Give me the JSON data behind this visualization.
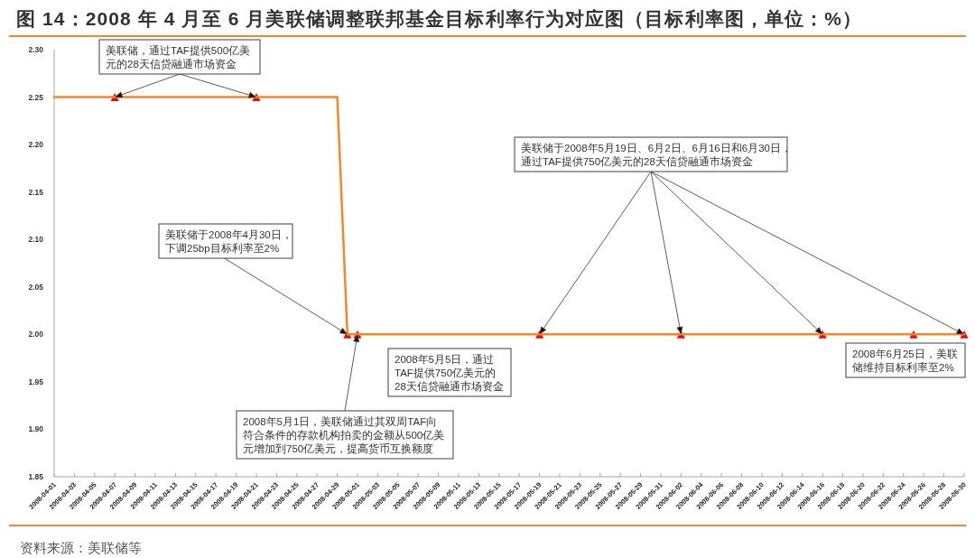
{
  "chart_data": {
    "type": "line",
    "title": "图 14：2008 年 4 月至 6 月美联储调整联邦基金目标利率行为对应图（目标利率图，单位：%）",
    "series": [
      {
        "color": "#f7862a",
        "marker": "none",
        "x": [
          "2008-04-01",
          "2008-04-29",
          "2008-04-30",
          "2008-06-30"
        ],
        "values": [
          2.25,
          2.25,
          2.0,
          2.0
        ]
      },
      {
        "type": "scatter",
        "color": "#ff0000",
        "marker": "triangle",
        "x": [
          "2008-04-07",
          "2008-04-21",
          "2008-04-30",
          "2008-05-01",
          "2008-05-19",
          "2008-06-02",
          "2008-06-16",
          "2008-06-25",
          "2008-06-30"
        ],
        "values": [
          2.25,
          2.25,
          2.0,
          2.0,
          2.0,
          2.0,
          2.0,
          2.0,
          2.0
        ]
      }
    ],
    "xlim": [
      "2008-04-01",
      "2008-06-30"
    ],
    "xticks": [
      "2008-04-01",
      "2008-04-03",
      "2008-04-05",
      "2008-04-07",
      "2008-04-09",
      "2008-04-11",
      "2008-04-13",
      "2008-04-15",
      "2008-04-17",
      "2008-04-19",
      "2008-04-21",
      "2008-04-23",
      "2008-04-25",
      "2008-04-27",
      "2008-04-29",
      "2008-05-01",
      "2008-05-03",
      "2008-05-05",
      "2008-05-07",
      "2008-05-09",
      "2008-05-11",
      "2008-05-13",
      "2008-05-15",
      "2008-05-17",
      "2008-05-19",
      "2008-05-21",
      "2008-05-23",
      "2008-05-25",
      "2008-05-27",
      "2008-05-29",
      "2008-05-31",
      "2008-06-02",
      "2008-06-04",
      "2008-06-06",
      "2008-06-08",
      "2008-06-10",
      "2008-06-12",
      "2008-06-14",
      "2008-06-16",
      "2008-06-18",
      "2008-06-20",
      "2008-06-22",
      "2008-06-24",
      "2008-06-26",
      "2008-06-28",
      "2008-06-30"
    ],
    "ylim": [
      1.85,
      2.3
    ],
    "yticks": [
      {
        "value": 1.85,
        "label": "1.85"
      },
      {
        "value": 1.9,
        "label": "1.90"
      },
      {
        "value": 1.95,
        "label": "1.95"
      },
      {
        "value": 2.0,
        "label": "2.00"
      },
      {
        "value": 2.05,
        "label": "2.05"
      },
      {
        "value": 2.1,
        "label": "2.10"
      },
      {
        "value": 2.15,
        "label": "2.15"
      },
      {
        "value": 2.2,
        "label": "2.20"
      },
      {
        "value": 2.25,
        "label": "2.25"
      },
      {
        "value": 2.3,
        "label": "2.30"
      }
    ],
    "annotations": [
      {
        "text": "美联储，通过TAF提供500亿美元的28天信贷融通市场资金",
        "x": "2008-04-07",
        "y": 2.25
      },
      {
        "text": "美联储于2008年4月30日，下调25bp目标利率至2%",
        "x": "2008-04-30",
        "y": 2.0
      },
      {
        "text": "2008年5月1日，美联储通过其双周TAF向符合条件的存款机构拍卖的金额从500亿美元增加到750亿美元，提高货币互换额度",
        "x": "2008-05-01",
        "y": 2.0
      },
      "2008年5月5日，通过TAF提供750亿美元的28天信贷融通市场资金",
      {
        "text": "美联储于2008年5月19日、6月2日、6月16日和6月30日，通过TAF提供750亿美元的28天信贷融通市场资金",
        "x": "2008-05-19",
        "y": 2.0
      },
      "2008年6月25日，美联储维持目标利率至2%",
      "资料来源：美联储等"
    ]
  }
}
